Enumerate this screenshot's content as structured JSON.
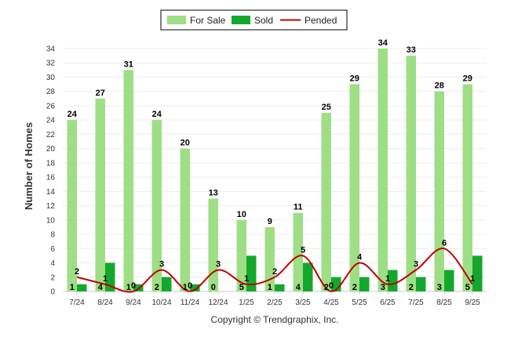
{
  "chart_data": {
    "type": "bar",
    "categories": [
      "7/24",
      "8/24",
      "9/24",
      "10/24",
      "11/24",
      "12/24",
      "1/25",
      "2/25",
      "3/25",
      "4/25",
      "5/25",
      "6/25",
      "7/25",
      "8/25",
      "9/25"
    ],
    "series": [
      {
        "name": "For Sale",
        "type": "bar",
        "color": "#9ede85",
        "values": [
          24,
          27,
          31,
          24,
          20,
          13,
          10,
          9,
          11,
          25,
          29,
          34,
          33,
          28,
          29
        ]
      },
      {
        "name": "Sold",
        "type": "bar",
        "color": "#13a82d",
        "values": [
          1,
          4,
          1,
          2,
          1,
          0,
          5,
          1,
          4,
          2,
          2,
          3,
          2,
          3,
          5
        ]
      },
      {
        "name": "Pended",
        "type": "line",
        "color": "#c00000",
        "values": [
          2,
          1,
          0,
          3,
          0,
          3,
          1,
          2,
          5,
          0,
          4,
          1,
          3,
          6,
          1
        ]
      }
    ],
    "ylabel": "Number of Homes",
    "ylim": [
      0,
      34
    ],
    "yticks": [
      0,
      2,
      4,
      6,
      8,
      10,
      12,
      14,
      16,
      18,
      20,
      22,
      24,
      26,
      28,
      30,
      32,
      34
    ],
    "grid": true,
    "legend_position": "top-center"
  },
  "footer": "Copyright © Trendgraphix, Inc."
}
